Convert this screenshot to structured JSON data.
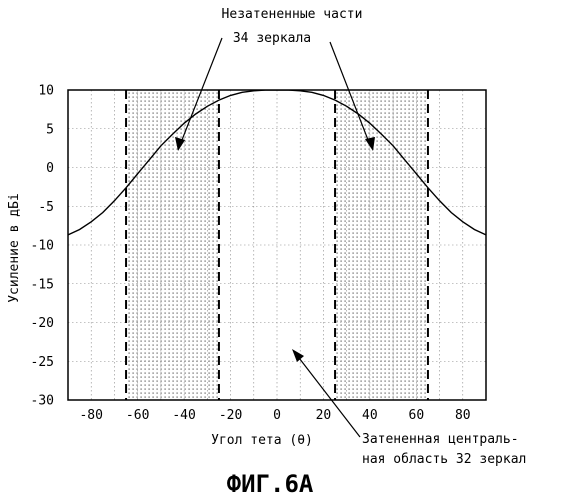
{
  "chart_data": {
    "type": "line",
    "title": "",
    "xlabel": "Угол тета (θ)",
    "ylabel": "Усиление в дБi",
    "xlim": [
      -90,
      90
    ],
    "ylim": [
      -30,
      10
    ],
    "xticks": [
      -80,
      -60,
      -40,
      -20,
      0,
      20,
      40,
      60,
      80
    ],
    "yticks": [
      10,
      5,
      0,
      -5,
      -10,
      -15,
      -20,
      -25,
      -30
    ],
    "grid": true,
    "series": [
      {
        "x": [
          -90,
          -85,
          -80,
          -75,
          -70,
          -65,
          -60,
          -55,
          -50,
          -45,
          -40,
          -35,
          -30,
          -25,
          -20,
          -15,
          -10,
          -5,
          0,
          5,
          10,
          15,
          20,
          25,
          30,
          35,
          40,
          45,
          50,
          55,
          60,
          65,
          70,
          75,
          80,
          85,
          90
        ],
        "y": [
          -8.7,
          -8.0,
          -7.0,
          -5.8,
          -4.3,
          -2.6,
          -0.8,
          1.0,
          2.8,
          4.3,
          5.7,
          6.9,
          7.9,
          8.7,
          9.3,
          9.7,
          9.9,
          10.0,
          10.0,
          10.0,
          9.9,
          9.7,
          9.3,
          8.7,
          7.9,
          6.9,
          5.7,
          4.3,
          2.8,
          1.0,
          -0.8,
          -2.6,
          -4.3,
          -5.8,
          -7.0,
          -8.0,
          -8.7
        ]
      }
    ],
    "shaded_regions": [
      {
        "x_from": -65,
        "x_to": -25
      },
      {
        "x_from": 25,
        "x_to": 65
      }
    ],
    "dashed_lines_x": [
      -65,
      -25,
      25,
      65
    ],
    "annotations": [
      {
        "line1": "Незатененные части",
        "line2": "34 зеркала"
      },
      {
        "line1": "Затененная централь-",
        "line2": "ная область 32 зеркал"
      }
    ]
  },
  "caption": "ФИГ.6А"
}
